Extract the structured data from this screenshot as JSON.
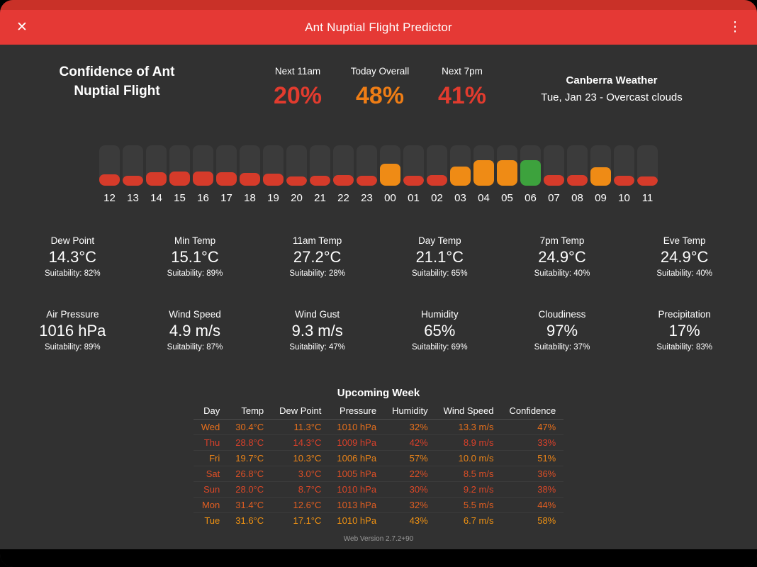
{
  "app": {
    "title": "Ant Nuptial Flight Predictor",
    "close_icon": "✕",
    "menu_icon": "⋮",
    "version": "Web Version 2.7.2+90"
  },
  "confidence": {
    "heading": "Confidence of Ant Nuptial Flight",
    "items": [
      {
        "label": "Next 11am",
        "value": "20%",
        "color": "#e23b2e"
      },
      {
        "label": "Today Overall",
        "value": "48%",
        "color": "#ef7d15"
      },
      {
        "label": "Next 7pm",
        "value": "41%",
        "color": "#e23b2e"
      }
    ]
  },
  "weather": {
    "location": "Canberra Weather",
    "conditions": "Tue, Jan 23 - Overcast clouds"
  },
  "hourly": {
    "palette": {
      "red": "#d63b2a",
      "orange": "#ef8b15",
      "green": "#3da23d"
    },
    "hours": [
      {
        "label": "12",
        "level": 28,
        "color": "red"
      },
      {
        "label": "13",
        "level": 25,
        "color": "red"
      },
      {
        "label": "14",
        "level": 33,
        "color": "red"
      },
      {
        "label": "15",
        "level": 35,
        "color": "red"
      },
      {
        "label": "16",
        "level": 35,
        "color": "red"
      },
      {
        "label": "17",
        "level": 33,
        "color": "red"
      },
      {
        "label": "18",
        "level": 32,
        "color": "red"
      },
      {
        "label": "19",
        "level": 30,
        "color": "red"
      },
      {
        "label": "20",
        "level": 23,
        "color": "red"
      },
      {
        "label": "21",
        "level": 25,
        "color": "red"
      },
      {
        "label": "22",
        "level": 26,
        "color": "red"
      },
      {
        "label": "23",
        "level": 24,
        "color": "red"
      },
      {
        "label": "00",
        "level": 54,
        "color": "orange"
      },
      {
        "label": "01",
        "level": 25,
        "color": "red"
      },
      {
        "label": "02",
        "level": 27,
        "color": "red"
      },
      {
        "label": "03",
        "level": 47,
        "color": "orange"
      },
      {
        "label": "04",
        "level": 64,
        "color": "orange"
      },
      {
        "label": "05",
        "level": 64,
        "color": "orange"
      },
      {
        "label": "06",
        "level": 64,
        "color": "green"
      },
      {
        "label": "07",
        "level": 27,
        "color": "red"
      },
      {
        "label": "08",
        "level": 27,
        "color": "red"
      },
      {
        "label": "09",
        "level": 46,
        "color": "orange"
      },
      {
        "label": "10",
        "level": 25,
        "color": "red"
      },
      {
        "label": "11",
        "level": 22,
        "color": "red"
      }
    ]
  },
  "metrics": {
    "suitability_prefix": "Suitability:",
    "items": [
      {
        "label": "Dew Point",
        "value": "14.3°C",
        "suitability": "82%"
      },
      {
        "label": "Min Temp",
        "value": "15.1°C",
        "suitability": "89%"
      },
      {
        "label": "11am Temp",
        "value": "27.2°C",
        "suitability": "28%"
      },
      {
        "label": "Day Temp",
        "value": "21.1°C",
        "suitability": "65%"
      },
      {
        "label": "7pm Temp",
        "value": "24.9°C",
        "suitability": "40%"
      },
      {
        "label": "Eve Temp",
        "value": "24.9°C",
        "suitability": "40%"
      },
      {
        "label": "Air Pressure",
        "value": "1016 hPa",
        "suitability": "89%"
      },
      {
        "label": "Wind Speed",
        "value": "4.9 m/s",
        "suitability": "87%"
      },
      {
        "label": "Wind Gust",
        "value": "9.3 m/s",
        "suitability": "47%"
      },
      {
        "label": "Humidity",
        "value": "65%",
        "suitability": "69%"
      },
      {
        "label": "Cloudiness",
        "value": "97%",
        "suitability": "37%"
      },
      {
        "label": "Precipitation",
        "value": "17%",
        "suitability": "83%"
      }
    ]
  },
  "week": {
    "title": "Upcoming Week",
    "headers": [
      "Day",
      "Temp",
      "Dew Point",
      "Pressure",
      "Humidity",
      "Wind Speed",
      "Confidence"
    ],
    "rows": [
      {
        "color": "#e8701c",
        "cells": [
          "Wed",
          "30.4°C",
          "11.3°C",
          "1010 hPa",
          "32%",
          "13.3 m/s",
          "47%"
        ]
      },
      {
        "color": "#d8402a",
        "cells": [
          "Thu",
          "28.8°C",
          "14.3°C",
          "1009 hPa",
          "42%",
          "8.9 m/s",
          "33%"
        ]
      },
      {
        "color": "#ec8418",
        "cells": [
          "Fri",
          "19.7°C",
          "10.3°C",
          "1006 hPa",
          "57%",
          "10.0 m/s",
          "51%"
        ]
      },
      {
        "color": "#dc4f26",
        "cells": [
          "Sat",
          "26.8°C",
          "3.0°C",
          "1005 hPa",
          "22%",
          "8.5 m/s",
          "36%"
        ]
      },
      {
        "color": "#da4727",
        "cells": [
          "Sun",
          "28.0°C",
          "8.7°C",
          "1010 hPa",
          "30%",
          "9.2 m/s",
          "38%"
        ]
      },
      {
        "color": "#e25e21",
        "cells": [
          "Mon",
          "31.4°C",
          "12.6°C",
          "1013 hPa",
          "32%",
          "5.5 m/s",
          "44%"
        ]
      },
      {
        "color": "#f09212",
        "cells": [
          "Tue",
          "31.6°C",
          "17.1°C",
          "1010 hPa",
          "43%",
          "6.7 m/s",
          "58%"
        ]
      }
    ]
  }
}
